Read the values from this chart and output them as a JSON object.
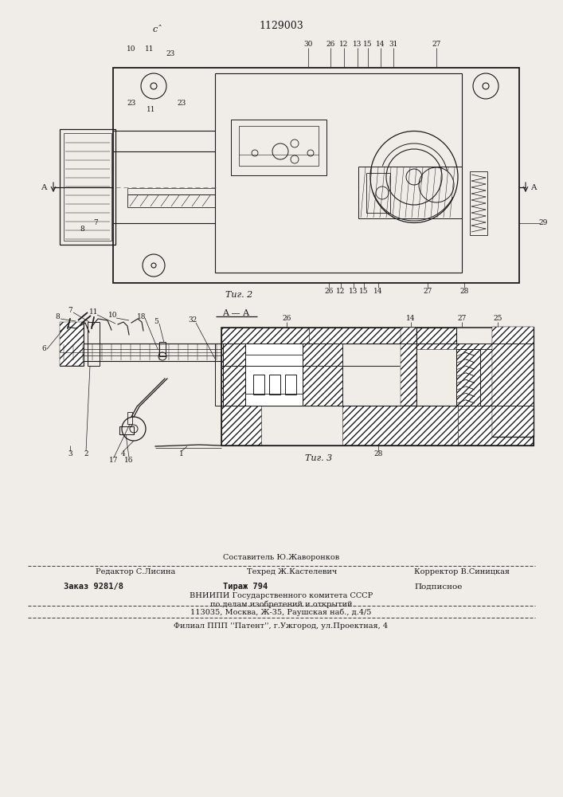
{
  "patent_number": "1129003",
  "background_color": "#f0ede8",
  "fig2_caption": "Τиг. 2",
  "fig3_caption": "Τиг. 3",
  "section_label": "A — A",
  "footer_line1_center": "Составитель Ю.Жаворонков",
  "footer_line2": "Редактор С.Лисина",
  "footer_line2_center": "Техред Ж.Кастелевич",
  "footer_line2_right": "Корректор В.Синицкая",
  "footer_line3_left": "Заказ 9281/8",
  "footer_line3_center": "Тираж 794",
  "footer_line3_right": "Подписное",
  "footer_line4": "ВНИИПИ Государственного комитета СССР",
  "footer_line5": "по делам изобретений и открытий",
  "footer_line6": "113035, Москва, Ж-35, Раушская наб., д.4/5",
  "footer_line7": "Филиал ППП ''Патент'', г.Ужгород, ул.Проектная, 4",
  "c_mark": "сˆ"
}
